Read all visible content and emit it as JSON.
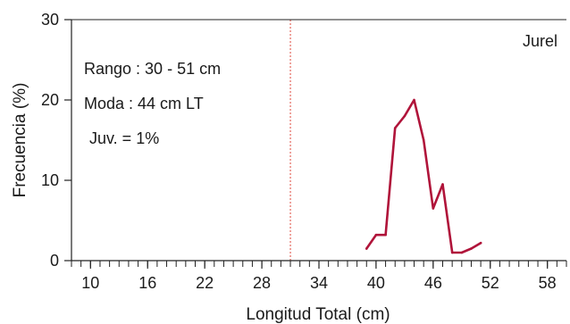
{
  "chart_data": {
    "type": "line",
    "species_label": "Jurel",
    "xlabel": "Longitud Total (cm)",
    "ylabel": "Frecuencia (%)",
    "xlim": [
      8,
      60
    ],
    "ylim": [
      0,
      30
    ],
    "x_ticks": [
      10,
      16,
      22,
      28,
      34,
      40,
      46,
      52,
      58
    ],
    "y_ticks": [
      0,
      10,
      20,
      30
    ],
    "minor_tick_step": 1,
    "reference_line_x": 31,
    "reference_line_color": "#e0483c",
    "series_color": "#b0143a",
    "annotations": [
      "Rango : 30 - 51 cm",
      "Moda : 44 cm LT",
      "Juv. = 1%"
    ],
    "series": [
      {
        "x": [
          39,
          40,
          41,
          42,
          43,
          44,
          45,
          46,
          47,
          48,
          49,
          50,
          51
        ],
        "y": [
          1.5,
          3.2,
          3.2,
          16.5,
          18,
          20,
          15,
          6.5,
          9.5,
          1,
          1,
          1.5,
          2.2
        ]
      }
    ]
  }
}
